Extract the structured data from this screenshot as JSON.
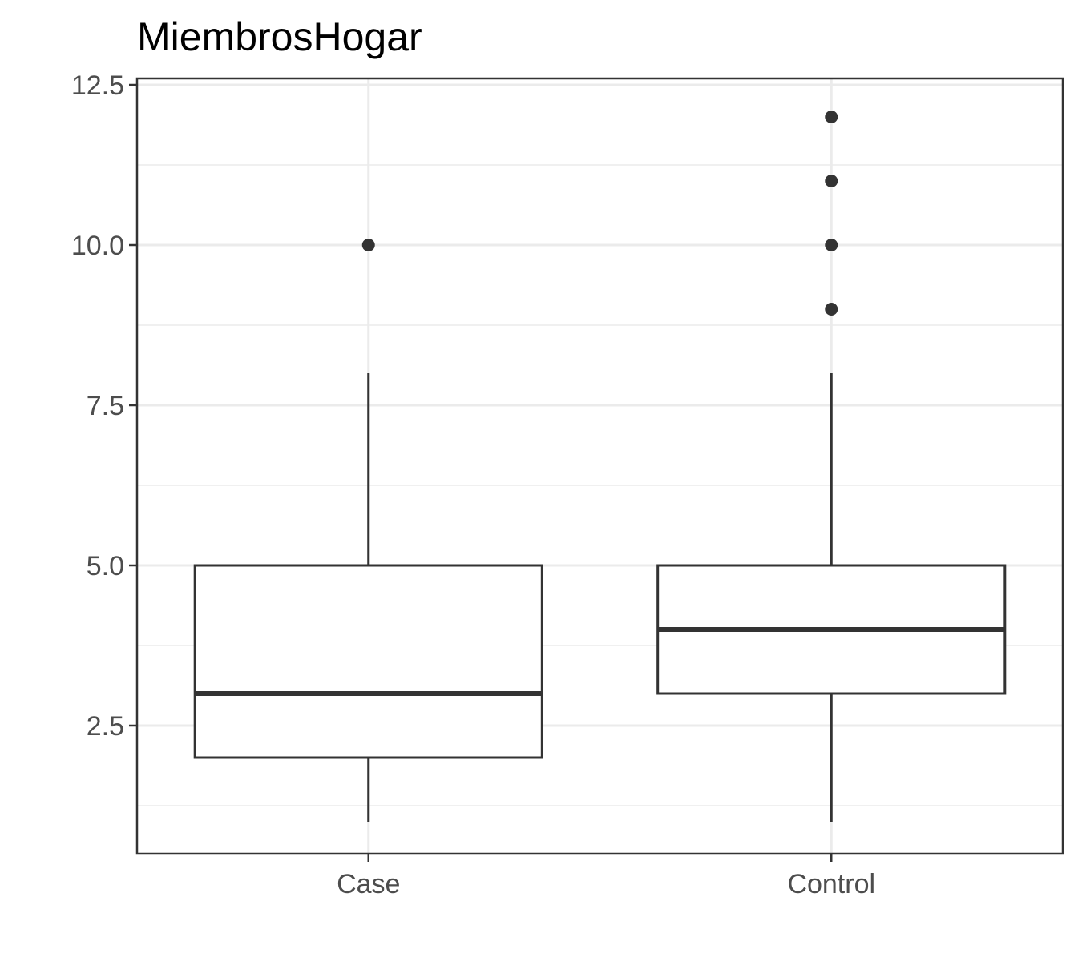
{
  "chart_data": {
    "type": "boxplot",
    "title": "MiembrosHogar",
    "xlabel": "",
    "ylabel": "",
    "categories": [
      "Case",
      "Control"
    ],
    "boxes": [
      {
        "category": "Case",
        "whisker_low": 1,
        "q1": 2,
        "median": 3,
        "q3": 5,
        "whisker_high": 8,
        "outliers": [
          10
        ]
      },
      {
        "category": "Control",
        "whisker_low": 1,
        "q1": 3,
        "median": 4,
        "q3": 5,
        "whisker_high": 8,
        "outliers": [
          9,
          10,
          11,
          12
        ]
      }
    ],
    "ylim": [
      0.5,
      12.6
    ],
    "yticks": [
      2.5,
      5.0,
      7.5,
      10.0,
      12.5
    ],
    "ytick_labels": [
      "2.5",
      "5.0",
      "7.5",
      "10.0",
      "12.5"
    ],
    "grid": true,
    "legend": "none",
    "colors": {
      "box_line": "#333333",
      "grid": "#ebebeb",
      "panel_border": "#333333",
      "tick_text": "#4d4d4d"
    }
  }
}
